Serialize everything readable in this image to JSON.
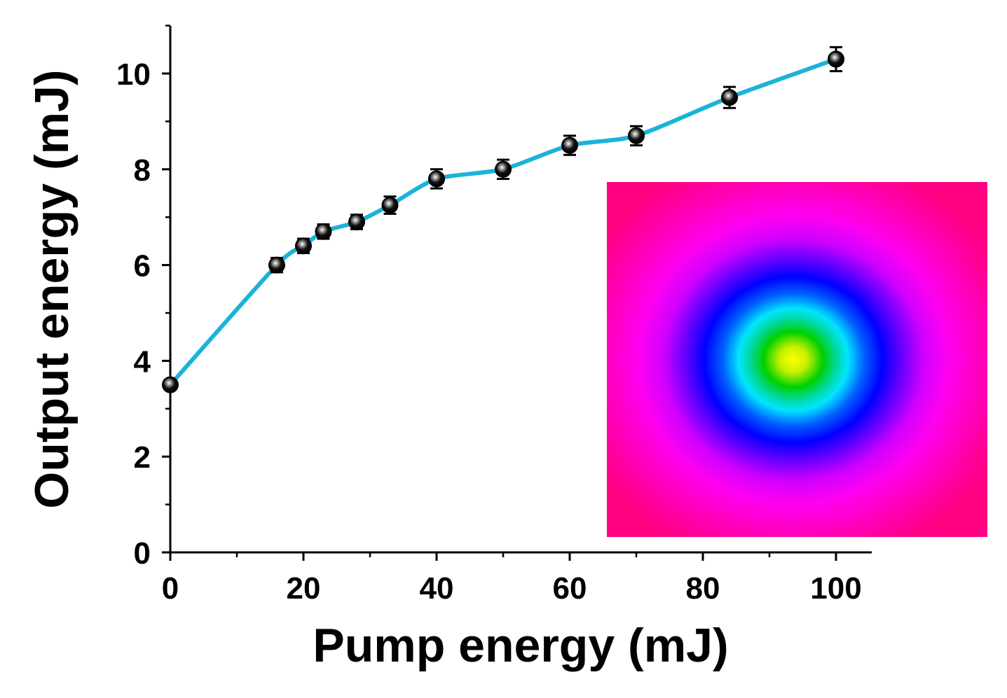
{
  "chart_data": {
    "type": "line",
    "title": "",
    "xlabel": "Pump energy (mJ)",
    "ylabel": "Output energy (mJ)",
    "xlim": [
      0,
      105
    ],
    "ylim": [
      0,
      11
    ],
    "x_ticks": [
      0,
      20,
      40,
      60,
      80,
      100
    ],
    "y_ticks": [
      0,
      2,
      4,
      6,
      8,
      10
    ],
    "x_tick_labels": [
      "0",
      "20",
      "40",
      "60",
      "80",
      "100"
    ],
    "y_tick_labels": [
      "0",
      "2",
      "4",
      "6",
      "8",
      "10"
    ],
    "grid": false,
    "line_color": "#1BB3D8",
    "marker_color": "#000000",
    "series": [
      {
        "name": "Output energy",
        "x": [
          0,
          16,
          20,
          23,
          28,
          33,
          40,
          50,
          60,
          70,
          84,
          100
        ],
        "y": [
          3.5,
          6.0,
          6.4,
          6.7,
          6.9,
          7.25,
          7.8,
          8.0,
          8.5,
          8.7,
          9.5,
          10.3
        ],
        "err": [
          0.1,
          0.15,
          0.15,
          0.15,
          0.15,
          0.18,
          0.2,
          0.2,
          0.2,
          0.2,
          0.22,
          0.25
        ]
      }
    ],
    "inset": {
      "description_icon": "beam-profile-image",
      "colors": [
        "#FF0080",
        "#FF00FF",
        "#0000FF",
        "#00E5FF",
        "#00D000",
        "#FFFF00"
      ]
    }
  }
}
